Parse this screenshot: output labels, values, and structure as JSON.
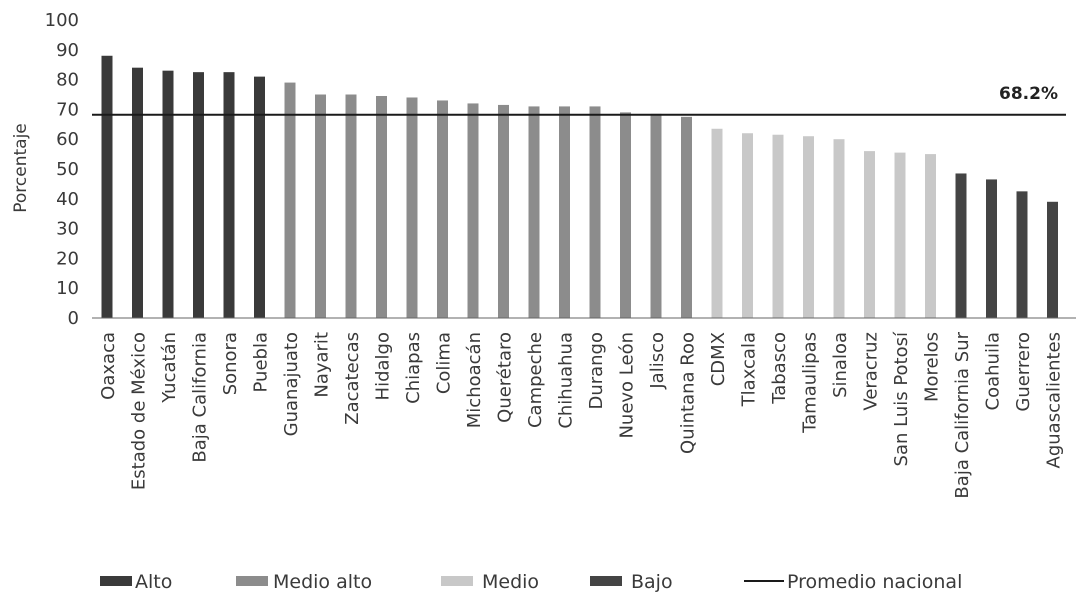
{
  "chart_data": {
    "type": "bar",
    "ylabel": "Porcentaje",
    "ylim": [
      0,
      100
    ],
    "yticks": [
      0,
      10,
      20,
      30,
      40,
      50,
      60,
      70,
      80,
      90,
      100
    ],
    "grid": false,
    "categories": [
      "Oaxaca",
      "Estado de México",
      "Yucatán",
      "Baja California",
      "Sonora",
      "Puebla",
      "Guanajuato",
      "Nayarit",
      "Zacatecas",
      "Hidalgo",
      "Chiapas",
      "Colima",
      "Michoacán",
      "Querétaro",
      "Campeche",
      "Chihuahua",
      "Durango",
      "Nuevo León",
      "Jalisco",
      "Quintana Roo",
      "CDMX",
      "Tlaxcala",
      "Tabasco",
      "Tamaulipas",
      "Sinaloa",
      "Veracruz",
      "San Luis Potosí",
      "Morelos",
      "Baja California Sur",
      "Coahuila",
      "Guerrero",
      "Aguascalientes"
    ],
    "values": [
      88,
      84,
      83,
      82.5,
      82.5,
      81,
      79,
      75,
      75,
      74.5,
      74,
      73,
      72,
      71.5,
      71,
      71,
      71,
      69,
      68.5,
      67.5,
      63.5,
      62,
      61.5,
      61,
      60,
      56,
      55.5,
      55,
      48.5,
      46.5,
      42.5,
      39
    ],
    "groups": [
      "Alto",
      "Alto",
      "Alto",
      "Alto",
      "Alto",
      "Alto",
      "Medio alto",
      "Medio alto",
      "Medio alto",
      "Medio alto",
      "Medio alto",
      "Medio alto",
      "Medio alto",
      "Medio alto",
      "Medio alto",
      "Medio alto",
      "Medio alto",
      "Medio alto",
      "Medio alto",
      "Medio alto",
      "Medio",
      "Medio",
      "Medio",
      "Medio",
      "Medio",
      "Medio",
      "Medio",
      "Medio",
      "Bajo",
      "Bajo",
      "Bajo",
      "Bajo"
    ],
    "reference_line": {
      "name": "Promedio nacional",
      "value": 68.2,
      "label": "68.2%"
    },
    "legend": {
      "placement": "bottom",
      "items": [
        {
          "label": "Alto",
          "kind": "bar",
          "color": "#3a3a3a"
        },
        {
          "label": "Medio alto",
          "kind": "bar",
          "color": "#8c8c8c"
        },
        {
          "label": "Medio",
          "kind": "bar",
          "color": "#c8c8c8"
        },
        {
          "label": "Bajo",
          "kind": "bar",
          "color": "#444444"
        },
        {
          "label": "Promedio nacional",
          "kind": "line",
          "color": "#1a1a1a"
        }
      ]
    },
    "colors": {
      "Alto": "#3a3a3a",
      "Medio alto": "#8c8c8c",
      "Medio": "#c8c8c8",
      "Bajo": "#444444",
      "line": "#1a1a1a",
      "axis": "#666666"
    }
  }
}
